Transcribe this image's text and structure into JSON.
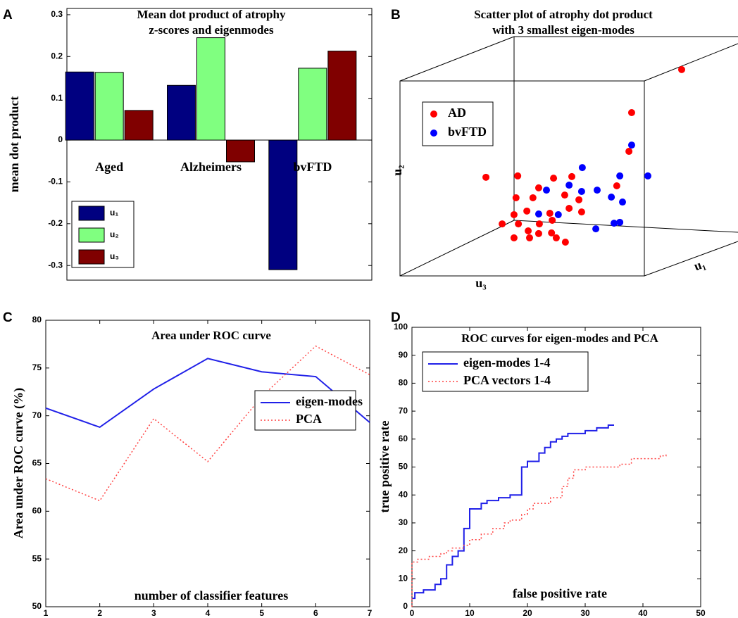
{
  "chart_data": [
    {
      "type": "bar",
      "panel": "A",
      "title": [
        "Mean dot product of atrophy",
        "z-scores and eigenmodes"
      ],
      "ylabel": "mean dot product",
      "categories": [
        "Aged",
        "Alzheimers",
        "bvFTD"
      ],
      "series": [
        {
          "name": "u₁",
          "color": "#000080",
          "values": [
            0.163,
            0.131,
            -0.31
          ]
        },
        {
          "name": "u₂",
          "color": "#80ff80",
          "values": [
            0.162,
            0.245,
            0.172
          ]
        },
        {
          "name": "u₃",
          "color": "#800000",
          "values": [
            0.071,
            -0.052,
            0.213
          ]
        }
      ],
      "ylim": [
        -0.335,
        0.315
      ],
      "yticks": [
        -0.3,
        -0.2,
        -0.1,
        0,
        0.1,
        0.2,
        0.3
      ],
      "legend": "lower left"
    },
    {
      "type": "scatter",
      "panel": "B",
      "title": [
        "Scatter plot of atrophy dot product",
        "with 3 smallest eigen-modes"
      ],
      "xlabel": "u₃",
      "ylabel": "u₂",
      "zlabel": "u₁",
      "series": [
        {
          "name": "AD",
          "color": "#ff0000",
          "x": [
            85.0,
            70.2,
            69.4,
            27.1,
            36.5,
            47.1,
            52.5,
            42.7,
            36.0,
            41.0,
            50.4,
            54.6,
            39.2,
            51.7,
            55.4,
            35.4,
            46.0,
            31.9,
            36.7,
            42.9,
            46.7,
            39.6,
            42.7,
            46.5,
            35.4,
            40.0,
            47.9,
            50.6,
            65.8
          ],
          "values": [
            94.1,
            75.0,
            57.8,
            46.3,
            46.9,
            45.9,
            46.6,
            41.6,
            37.2,
            37.2,
            38.4,
            36.3,
            31.3,
            32.5,
            30.9,
            29.7,
            30.3,
            25.6,
            25.6,
            25.6,
            27.2,
            22.5,
            21.3,
            21.6,
            19.4,
            19.4,
            19.4,
            17.5,
            42.5
          ]
        },
        {
          "name": "bvFTD",
          "color": "#0000ff",
          "x": [
            70.2,
            75.0,
            55.6,
            66.7,
            45.0,
            51.7,
            55.4,
            60.0,
            64.2,
            67.5,
            42.7,
            48.5,
            59.6,
            65.0,
            66.7
          ],
          "values": [
            60.6,
            46.9,
            50.6,
            46.9,
            40.6,
            42.8,
            40.0,
            40.6,
            37.5,
            35.3,
            30.0,
            29.7,
            23.4,
            25.9,
            26.3
          ]
        }
      ],
      "xlim": [
        0,
        100
      ],
      "ylim": [
        0,
        100
      ],
      "legend": "upper left"
    },
    {
      "type": "line",
      "panel": "C",
      "title": "Area under ROC curve",
      "xlabel": "number of classifier features",
      "ylabel": "Area under ROC curve (%)",
      "x": [
        1,
        2,
        3,
        4,
        5,
        6,
        7
      ],
      "series": [
        {
          "name": "eigen-modes",
          "color": "#2020e8",
          "dash": "solid",
          "values": [
            70.8,
            68.8,
            72.8,
            76.0,
            74.6,
            74.1,
            69.3
          ]
        },
        {
          "name": "PCA",
          "color": "#ff4040",
          "dash": "dotted",
          "values": [
            63.4,
            61.1,
            69.7,
            65.2,
            72.0,
            77.3,
            74.3
          ]
        }
      ],
      "xlim": [
        1,
        7
      ],
      "xticks": [
        1,
        2,
        3,
        4,
        5,
        6,
        7
      ],
      "ylim": [
        50,
        80
      ],
      "yticks": [
        50,
        55,
        60,
        65,
        70,
        75,
        80
      ],
      "legend": "lower right"
    },
    {
      "type": "line",
      "panel": "D",
      "title": "ROC curves for eigen-modes and PCA",
      "xlabel": "false positive rate",
      "ylabel": "true positive rate",
      "series": [
        {
          "name": "eigen-modes 1-4",
          "color": "#2020e8",
          "dash": "solid",
          "x": [
            0,
            0.5,
            0.5,
            2,
            2,
            4,
            4,
            5,
            5,
            6,
            6,
            7,
            7,
            8,
            8,
            9,
            9,
            10,
            10,
            12,
            12,
            13,
            13,
            15,
            15,
            17,
            17,
            19,
            19,
            20,
            20,
            22,
            22,
            23,
            23,
            24,
            24,
            25,
            25,
            26,
            26,
            27,
            27,
            30,
            30,
            32,
            32,
            34,
            34,
            35
          ],
          "values": [
            3,
            3,
            5,
            5,
            6,
            6,
            8,
            8,
            10,
            10,
            15,
            15,
            18,
            18,
            20,
            20,
            28,
            28,
            35,
            35,
            37,
            37,
            38,
            38,
            39,
            39,
            40,
            40,
            50,
            50,
            52,
            52,
            55,
            55,
            57,
            57,
            59,
            59,
            60,
            60,
            61,
            61,
            62,
            62,
            63,
            63,
            64,
            64,
            65,
            65
          ]
        },
        {
          "name": "PCA vectors 1-4",
          "color": "#ff4040",
          "dash": "dotted",
          "x": [
            0,
            0,
            1,
            1,
            3,
            3,
            5,
            5,
            6,
            6,
            7,
            7,
            9,
            9,
            10,
            10,
            12,
            12,
            14,
            14,
            16,
            16,
            17,
            17,
            19,
            19,
            20,
            20,
            21,
            21,
            24,
            24,
            26,
            26,
            27,
            27,
            28,
            28,
            30,
            30,
            36,
            36,
            38,
            38,
            43,
            43,
            44,
            44
          ],
          "values": [
            0,
            16,
            16,
            17,
            17,
            18,
            18,
            19,
            19,
            20,
            20,
            21,
            21,
            22,
            22,
            24,
            24,
            26,
            26,
            28,
            28,
            30,
            30,
            31,
            31,
            33,
            33,
            35,
            35,
            37,
            37,
            39,
            39,
            43,
            43,
            46,
            46,
            49,
            49,
            50,
            50,
            51,
            51,
            53,
            53,
            54,
            54,
            55
          ]
        }
      ],
      "xlim": [
        0,
        50
      ],
      "xticks": [
        0,
        10,
        20,
        30,
        40,
        50
      ],
      "ylim": [
        0,
        100
      ],
      "yticks": [
        0,
        10,
        20,
        30,
        40,
        50,
        60,
        70,
        80,
        90,
        100
      ],
      "legend": "upper left"
    }
  ]
}
